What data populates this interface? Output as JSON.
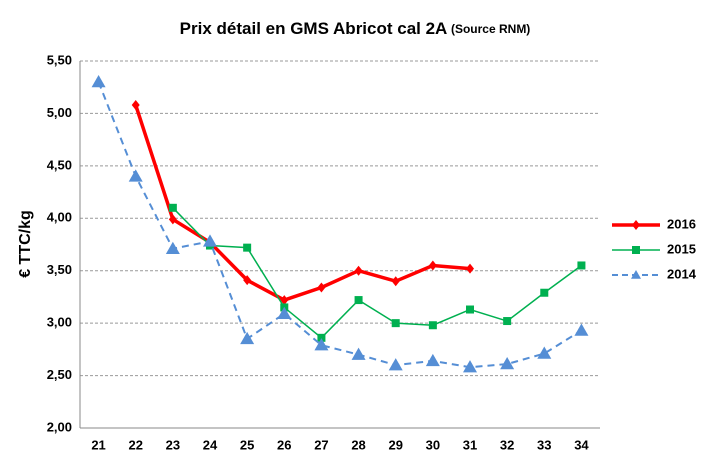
{
  "chart_data": {
    "type": "line",
    "title": "Prix détail en GMS Abricot cal 2A",
    "source": "(Source RNM)",
    "y_label": "€ TTC/kg",
    "categories": [
      "21",
      "22",
      "23",
      "24",
      "25",
      "26",
      "27",
      "28",
      "29",
      "30",
      "31",
      "32",
      "33",
      "34"
    ],
    "series": [
      {
        "name": "2016",
        "color": "#ff0000",
        "values": [
          null,
          5.08,
          3.99,
          3.77,
          3.41,
          3.22,
          3.34,
          3.5,
          3.4,
          3.55,
          3.52,
          null,
          null,
          null
        ]
      },
      {
        "name": "2015",
        "color": "#00b050",
        "values": [
          null,
          null,
          4.1,
          3.74,
          3.72,
          3.15,
          2.86,
          3.22,
          3.0,
          2.98,
          3.13,
          3.02,
          3.29,
          3.55
        ]
      },
      {
        "name": "2014",
        "color": "#558ed5",
        "values": [
          5.3,
          4.4,
          3.71,
          3.78,
          2.85,
          3.09,
          2.79,
          2.7,
          2.6,
          2.64,
          2.58,
          2.61,
          2.71,
          2.93
        ]
      }
    ],
    "ylim": [
      2,
      5.5
    ],
    "yticks": [
      {
        "value": 2,
        "label": "2,00"
      },
      {
        "value": 2.5,
        "label": "2,50"
      },
      {
        "value": 3,
        "label": "3,00"
      },
      {
        "value": 3.5,
        "label": "3,50"
      },
      {
        "value": 4,
        "label": "4,00"
      },
      {
        "value": 4.5,
        "label": "4,50"
      },
      {
        "value": 5,
        "label": "5,00"
      },
      {
        "value": 5.5,
        "label": "5,50"
      }
    ],
    "grid": true,
    "legend": "right"
  }
}
